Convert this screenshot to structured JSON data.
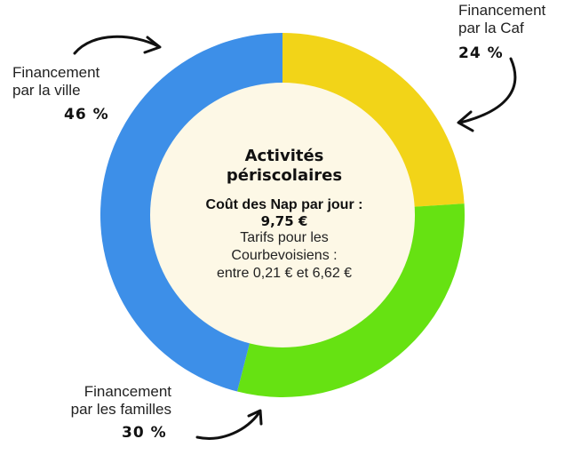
{
  "chart_data": {
    "type": "pie",
    "title": "Activités périscolaires",
    "center": {
      "title": "Activités périscolaires",
      "cost_label": "Coût des Nap par jour :",
      "cost_value": "9,75 €",
      "note_line1": "Tarifs pour les",
      "note_line2": "Courbevoisiens :",
      "note_line3": "entre 0,21 € et 6,62 €"
    },
    "slices": [
      {
        "label_line1": "Financement",
        "label_line2": "par la Caf",
        "value": 24,
        "value_label": "24 %",
        "color": "#f2d418"
      },
      {
        "label_line1": "Financement",
        "label_line2": "par les familles",
        "value": 30,
        "value_label": "30 %",
        "color": "#66e212"
      },
      {
        "label_line1": "Financement",
        "label_line2": "par la ville",
        "value": 46,
        "value_label": "46 %",
        "color": "#3d8fe8"
      }
    ],
    "center_fill": "#fdf8e6",
    "legend": "none"
  }
}
